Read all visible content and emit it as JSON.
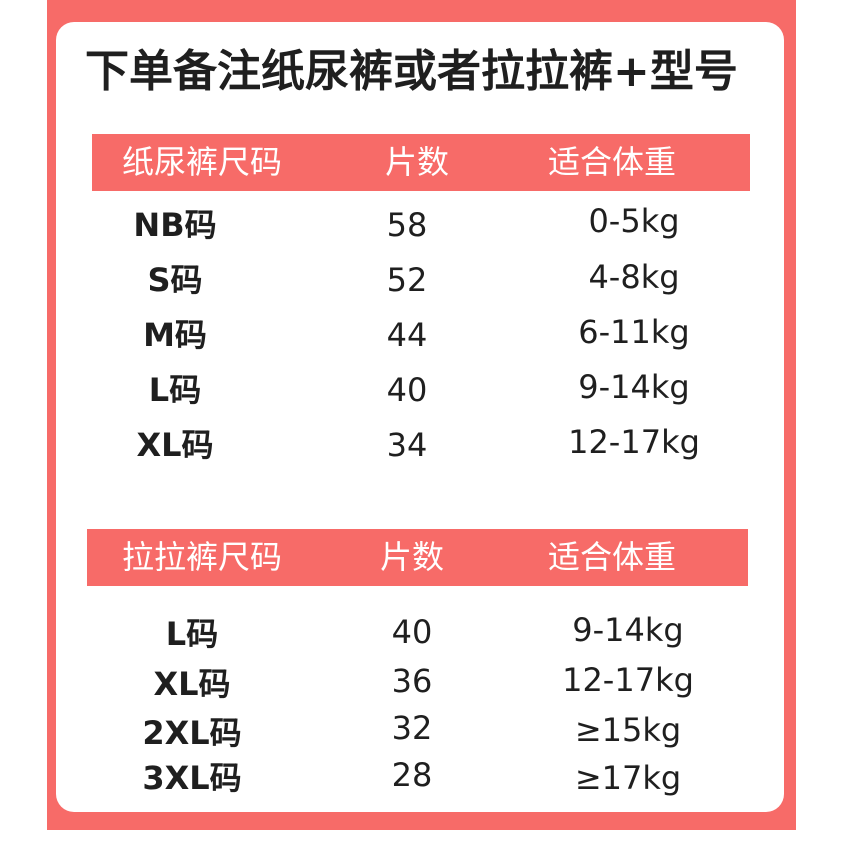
{
  "title": "下单备注纸尿裤或者拉拉裤+型号",
  "tables": [
    {
      "headers": [
        "纸尿裤尺码",
        "片数",
        "适合体重"
      ],
      "rows": [
        [
          "NB码",
          "58",
          "0-5kg"
        ],
        [
          "S码",
          "52",
          "4-8kg"
        ],
        [
          "M码",
          "44",
          "6-11kg"
        ],
        [
          "L码",
          "40",
          "9-14kg"
        ],
        [
          "XL码",
          "34",
          "12-17kg"
        ]
      ]
    },
    {
      "headers": [
        "拉拉裤尺码",
        "片数",
        "适合体重"
      ],
      "rows": [
        [
          "L码",
          "40",
          "9-14kg"
        ],
        [
          "XL码",
          "36",
          "12-17kg"
        ],
        [
          "2XL码",
          "32",
          "≥15kg"
        ],
        [
          "3XL码",
          "28",
          "≥17kg"
        ]
      ]
    }
  ],
  "colors": {
    "accent": "#f76b68",
    "text": "#1f1f1f",
    "header_text": "#ffffff"
  }
}
